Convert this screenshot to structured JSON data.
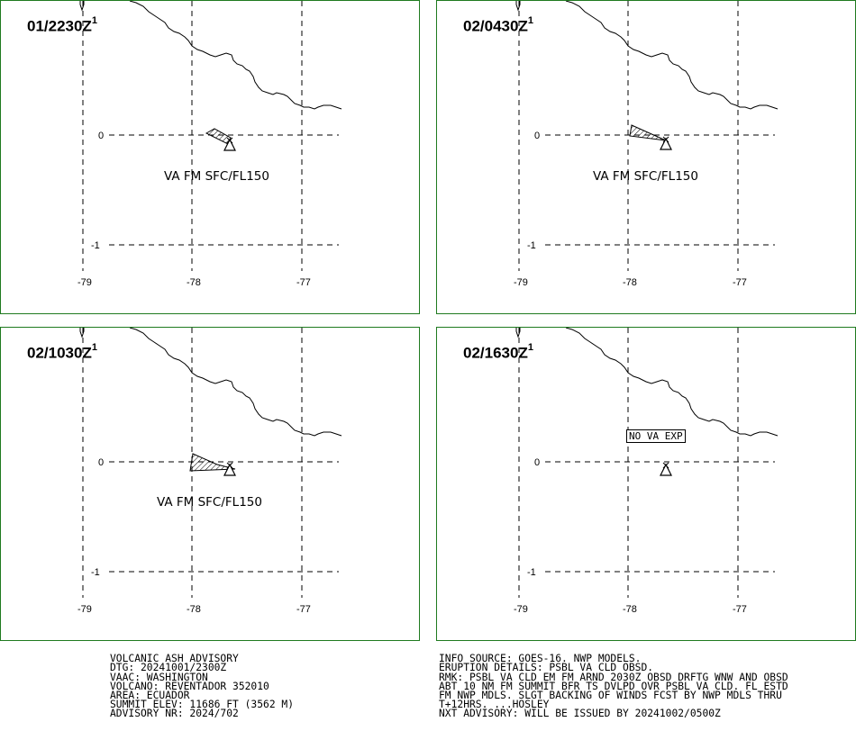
{
  "panels": [
    {
      "time": "01/2230Z",
      "marker": "1",
      "label": "VA FM SFC/FL150"
    },
    {
      "time": "02/0430Z",
      "marker": "1",
      "label": "VA FM SFC/FL150"
    },
    {
      "time": "02/1030Z",
      "marker": "1",
      "label": "VA FM SFC/FL150"
    },
    {
      "time": "02/1630Z",
      "marker": "1",
      "label": "NO VA EXP"
    }
  ],
  "axes": {
    "lon_ticks": [
      "-79",
      "-78",
      "-77"
    ],
    "lat_ticks": [
      "0",
      "-1"
    ]
  },
  "advisory_left": [
    "VOLCANIC ASH ADVISORY",
    "DTG: 20241001/2300Z",
    "VAAC: WASHINGTON",
    "VOLCANO: REVENTADOR 352010",
    "AREA: ECUADOR",
    "SUMMIT ELEV: 11686 FT (3562 M)",
    "ADVISORY NR: 2024/702"
  ],
  "advisory_right": [
    "INFO SOURCE: GOES-16. NWP MODELS.",
    "ERUPTION DETAILS: PSBL VA CLD OBSD.",
    "RMK: PSBL VA CLD EM FM ARND 2030Z OBSD DRFTG WNW AND OBSD",
    "ABT 10 NM FM SUMMIT BFR TS DVLPD OVR PSBL VA CLD. FL ESTD",
    "FM NWP MDLS. SLGT BACKING OF WINDS FCST BY NWP MDLS THRU",
    "T+12HRS. ...HOSLEY",
    "NXT ADVISORY: WILL BE ISSUED BY 20241002/0500Z"
  ],
  "colors": {
    "border": "#1f7a1f",
    "grid": "#000000",
    "coast": "#000000"
  }
}
